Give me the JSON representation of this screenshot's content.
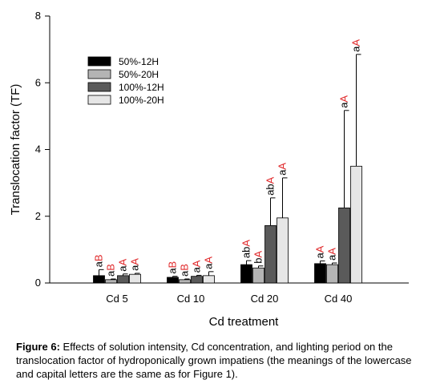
{
  "chart_data": {
    "type": "bar",
    "categories": [
      "Cd 5",
      "Cd 10",
      "Cd 20",
      "Cd 40"
    ],
    "xlabel": "Cd treatment",
    "ylabel": "Translocation factor (TF)",
    "ylim": [
      0,
      8
    ],
    "yticks": [
      0,
      2,
      4,
      6,
      8
    ],
    "grid": false,
    "legend_position": "top-left",
    "series": [
      {
        "name": "50%-12H",
        "color": "#000000",
        "values": [
          0.22,
          0.17,
          0.55,
          0.58
        ],
        "errors": [
          0.18,
          0.03,
          0.12,
          0.08
        ],
        "labels": [
          [
            "a",
            "B"
          ],
          [
            "a",
            "B"
          ],
          [
            "ab",
            "A"
          ],
          [
            "a",
            "A"
          ]
        ]
      },
      {
        "name": "50%-20H",
        "color": "#b4b4b4",
        "values": [
          0.1,
          0.1,
          0.45,
          0.55
        ],
        "errors": [
          0.02,
          0.02,
          0.06,
          0.05
        ],
        "labels": [
          [
            "a",
            "B"
          ],
          [
            "a",
            "B"
          ],
          [
            "b",
            "A"
          ],
          [
            "a",
            "A"
          ]
        ]
      },
      {
        "name": "100%-12H",
        "color": "#5a5a5a",
        "values": [
          0.22,
          0.2,
          1.72,
          2.25
        ],
        "errors": [
          0.05,
          0.03,
          0.83,
          2.92
        ],
        "labels": [
          [
            "a",
            "A"
          ],
          [
            "a",
            "A"
          ],
          [
            "ab",
            "A"
          ],
          [
            "a",
            "A"
          ]
        ]
      },
      {
        "name": "100%-20H",
        "color": "#e6e6e6",
        "values": [
          0.26,
          0.22,
          1.95,
          3.5
        ],
        "errors": [
          0.03,
          0.12,
          1.2,
          3.35
        ],
        "labels": [
          [
            "a",
            "A"
          ],
          [
            "a",
            "A"
          ],
          [
            "a",
            "A"
          ],
          [
            "a",
            "A"
          ]
        ]
      }
    ],
    "lowercase_color": "#000000",
    "capital_color": "#e0282a"
  },
  "caption": {
    "label": "Figure 6:",
    "text": " Effects of solution intensity, Cd concentration, and lighting period on the translocation factor of hydroponically grown impatiens (the meanings of the lowercase and capital letters are the same as for Figure 1)."
  }
}
